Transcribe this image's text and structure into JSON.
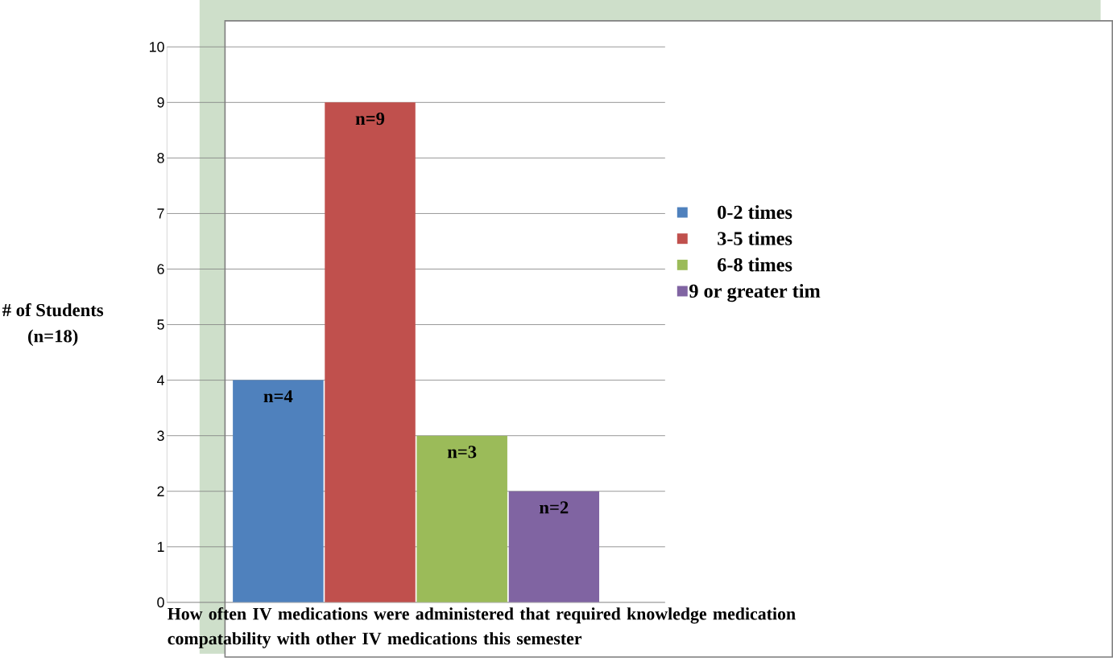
{
  "chart_data": {
    "type": "bar",
    "categories": [
      null
    ],
    "series": [
      {
        "name": "0-2 times",
        "color": "#4f81bd",
        "values": [
          4
        ],
        "value_labels": [
          "n=4"
        ]
      },
      {
        "name": "3-5 times",
        "color": "#c0504d",
        "values": [
          9
        ],
        "value_labels": [
          "n=9"
        ]
      },
      {
        "name": "6-8 times",
        "color": "#9bbb59",
        "values": [
          3
        ],
        "value_labels": [
          "n=3"
        ]
      },
      {
        "name": "9 or greater tim",
        "color": "#8064a2",
        "values": [
          2
        ],
        "value_labels": [
          "n=2"
        ]
      }
    ],
    "ylabel": "# of Students\n(n=18)",
    "xlabel": "How often IV medications were administered that required knowledge medication compatability with other IV medications this semester",
    "ylim": [
      0,
      10
    ],
    "yticks": [
      0,
      1,
      2,
      3,
      4,
      5,
      6,
      7,
      8,
      9,
      10
    ],
    "grid": "y",
    "legend": "right"
  }
}
